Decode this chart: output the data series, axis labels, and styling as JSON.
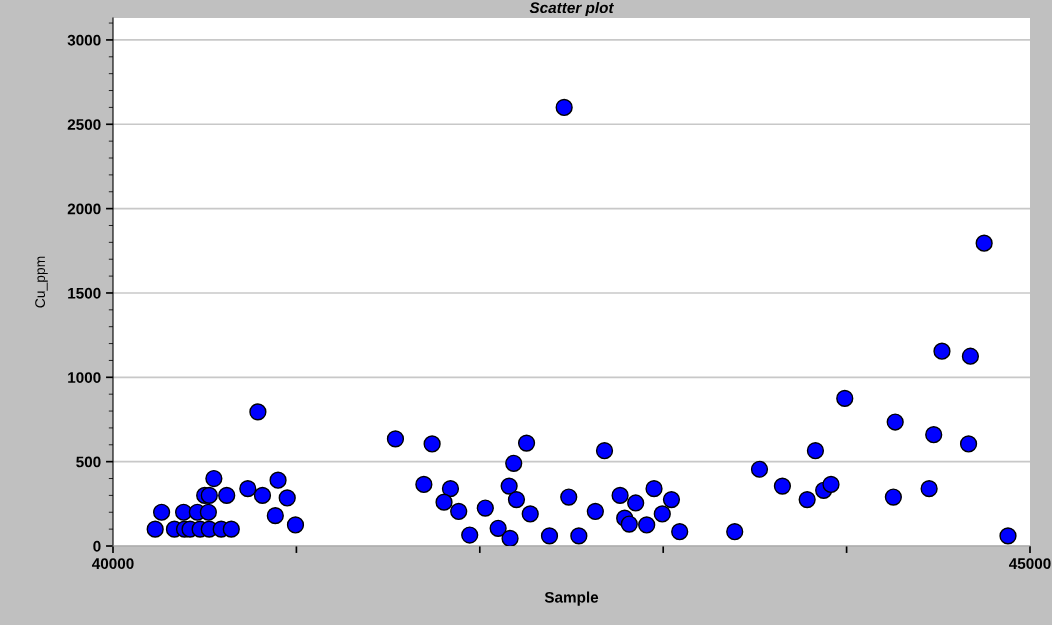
{
  "chart_data": {
    "type": "scatter",
    "title": "Scatter plot",
    "xlabel": "Sample",
    "ylabel": "Cu_ppm",
    "x": [
      40230,
      40265,
      40335,
      40385,
      40390,
      40420,
      40460,
      40475,
      40500,
      40525,
      40520,
      40525,
      40550,
      40590,
      40620,
      40645,
      40790,
      40735,
      40815,
      40900,
      40950,
      40885,
      40995,
      41540,
      41740,
      41695,
      41840,
      41805,
      41885,
      41945,
      42030,
      42100,
      42165,
      42160,
      42185,
      42200,
      42255,
      42275,
      42380,
      42460,
      42485,
      42540,
      42630,
      42680,
      42765,
      42790,
      42815,
      42850,
      42910,
      42950,
      42995,
      43045,
      43090,
      43390,
      43525,
      43650,
      43785,
      43830,
      43875,
      43915,
      43990,
      44265,
      44255,
      44450,
      44475,
      44520,
      44665,
      44675,
      44750,
      44880
    ],
    "series": [
      {
        "color": "#0000ff",
        "values": [
          100,
          200,
          100,
          200,
          100,
          100,
          200,
          100,
          300,
          300,
          200,
          100,
          400,
          100,
          300,
          100,
          795,
          340,
          300,
          390,
          285,
          180,
          125,
          635,
          605,
          365,
          340,
          260,
          205,
          65,
          225,
          105,
          45,
          355,
          490,
          275,
          610,
          190,
          60,
          2600,
          290,
          60,
          205,
          565,
          300,
          165,
          130,
          255,
          125,
          340,
          190,
          275,
          85,
          85,
          455,
          355,
          275,
          565,
          330,
          365,
          875,
          735,
          290,
          340,
          660,
          1155,
          605,
          1125,
          1795,
          60
        ]
      }
    ],
    "xlim": [
      40000,
      45000
    ],
    "xticks": [
      40000,
      {
        "value": 41000,
        "label": null
      },
      {
        "value": 42000,
        "label": null
      },
      {
        "value": 43000,
        "label": null
      },
      {
        "value": 44000,
        "label": null
      },
      45000
    ],
    "ylim": [
      0,
      3130
    ],
    "yticks": [
      0,
      500,
      1000,
      1500,
      2000,
      2500,
      3000
    ],
    "grid": "y",
    "marker": "circle",
    "legend": false
  }
}
